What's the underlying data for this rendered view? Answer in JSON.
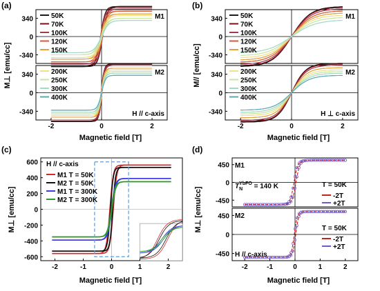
{
  "figure": {
    "colors": {
      "50K": "#1a1a1a",
      "70K": "#7a0f16",
      "100K": "#a23a4e",
      "120K": "#d65a36",
      "150K": "#e6a13c",
      "200K": "#efe08a",
      "250K": "#c7e6a0",
      "300K": "#a6d9c4",
      "400K": "#5aa8b8",
      "M1_50K": "#d42a2a",
      "M2_50K": "#111111",
      "M1_300K": "#3a3ae0",
      "M2_300K": "#2e9a2e",
      "neg2T": "#c81e1e",
      "pos2T": "#6a5acd",
      "zoom_box": "#5b9bd5"
    }
  },
  "chart_data": [
    {
      "panel": "(a)",
      "type": "line",
      "xlabel": "Magnetic field [T]",
      "ylabel": "M⊥ [emu/cc]",
      "xticks": [
        "-2",
        "0",
        "2"
      ],
      "yticks_top": [
        "340",
        "0",
        "-340"
      ],
      "yticks_bottom": [
        "340",
        "0",
        "-340"
      ],
      "xlim": [
        -2.6,
        2.6
      ],
      "ylim": [
        -500,
        500
      ],
      "subpanels": [
        {
          "label": "M1",
          "legend": [
            "50K",
            "70K",
            "100K",
            "120K",
            "150K"
          ],
          "series": [
            {
              "name": "50K",
              "ms": 560,
              "w": 0.18,
              "hc": 0.04
            },
            {
              "name": "70K",
              "ms": 540,
              "w": 0.18,
              "hc": 0.04
            },
            {
              "name": "100K",
              "ms": 510,
              "w": 0.19,
              "hc": 0.04
            },
            {
              "name": "120K",
              "ms": 470,
              "w": 0.2,
              "hc": 0.035
            },
            {
              "name": "150K",
              "ms": 420,
              "w": 0.22,
              "hc": 0.03
            },
            {
              "name": "200K",
              "ms": 390,
              "w": 0.24,
              "hc": 0.02
            },
            {
              "name": "250K",
              "ms": 340,
              "w": 0.26,
              "hc": 0.02
            },
            {
              "name": "300K",
              "ms": 300,
              "w": 0.28,
              "hc": 0.01
            }
          ]
        },
        {
          "label": "M2",
          "legend": [
            "200K",
            "250K",
            "300K",
            "400K"
          ],
          "note": "H // c-axis",
          "series": [
            {
              "name": "50K",
              "ms": 530,
              "w": 0.12,
              "hc": 0.02
            },
            {
              "name": "70K",
              "ms": 520,
              "w": 0.12,
              "hc": 0.02
            },
            {
              "name": "100K",
              "ms": 500,
              "w": 0.12,
              "hc": 0.02
            },
            {
              "name": "150K",
              "ms": 450,
              "w": 0.13,
              "hc": 0.02
            },
            {
              "name": "200K",
              "ms": 420,
              "w": 0.14,
              "hc": 0.01
            },
            {
              "name": "250K",
              "ms": 390,
              "w": 0.14,
              "hc": 0.01
            },
            {
              "name": "300K",
              "ms": 360,
              "w": 0.15,
              "hc": 0.01
            },
            {
              "name": "400K",
              "ms": 320,
              "w": 0.16,
              "hc": 0.0
            }
          ]
        }
      ]
    },
    {
      "panel": "(b)",
      "type": "line",
      "xlabel": "Magnetic field [T]",
      "ylabel": "M// [emu/cc]",
      "xticks": [
        "-2",
        "0",
        "2"
      ],
      "yticks_top": [
        "340",
        "0",
        "-340"
      ],
      "yticks_bottom": [
        "340",
        "0",
        "-340"
      ],
      "xlim": [
        -2.6,
        2.6
      ],
      "ylim": [
        -500,
        500
      ],
      "subpanels": [
        {
          "label": "M1",
          "legend": [
            "50K",
            "70K",
            "100K",
            "120K",
            "150K"
          ],
          "series": [
            {
              "name": "50K",
              "ms": 560,
              "w": 0.75,
              "hc": 0.0
            },
            {
              "name": "70K",
              "ms": 545,
              "w": 0.75,
              "hc": 0.0
            },
            {
              "name": "100K",
              "ms": 520,
              "w": 0.78,
              "hc": 0.0
            },
            {
              "name": "120K",
              "ms": 480,
              "w": 0.8,
              "hc": 0.0
            },
            {
              "name": "150K",
              "ms": 440,
              "w": 0.82,
              "hc": 0.0
            },
            {
              "name": "200K",
              "ms": 400,
              "w": 0.85,
              "hc": 0.0
            },
            {
              "name": "250K",
              "ms": 360,
              "w": 0.9,
              "hc": 0.0
            },
            {
              "name": "300K",
              "ms": 310,
              "w": 0.95,
              "hc": 0.0
            }
          ]
        },
        {
          "label": "M2",
          "legend": [
            "200K",
            "250K",
            "300K",
            "400K"
          ],
          "note": "H ⊥ c-axis",
          "series": [
            {
              "name": "50K",
              "ms": 540,
              "w": 0.55,
              "hc": 0.0
            },
            {
              "name": "70K",
              "ms": 525,
              "w": 0.55,
              "hc": 0.0
            },
            {
              "name": "100K",
              "ms": 505,
              "w": 0.58,
              "hc": 0.0
            },
            {
              "name": "150K",
              "ms": 460,
              "w": 0.6,
              "hc": 0.0
            },
            {
              "name": "200K",
              "ms": 420,
              "w": 0.62,
              "hc": 0.0
            },
            {
              "name": "250K",
              "ms": 390,
              "w": 0.65,
              "hc": 0.0
            },
            {
              "name": "300K",
              "ms": 360,
              "w": 0.68,
              "hc": 0.0
            },
            {
              "name": "400K",
              "ms": 320,
              "w": 0.7,
              "hc": 0.0
            }
          ]
        }
      ]
    },
    {
      "panel": "(c)",
      "type": "line",
      "xlabel": "Magnetic field [T]",
      "ylabel": "M⊥ [emu/cc]",
      "legend_title": "H // c-axis",
      "xticks": [
        "-2",
        "-1",
        "0",
        "1",
        "2"
      ],
      "yticks": [
        "600",
        "400",
        "200",
        "0",
        "-200",
        "-400",
        "-600"
      ],
      "xlim": [
        -2.5,
        2.5
      ],
      "ylim": [
        -650,
        650
      ],
      "series": [
        {
          "name": "M1 T = 50K",
          "key": "M1_50K",
          "ms": 560,
          "w": 0.12,
          "hc": 0.06
        },
        {
          "name": "M2 T = 50K",
          "key": "M2_50K",
          "ms": 530,
          "w": 0.1,
          "hc": 0.04
        },
        {
          "name": "M1 T = 300K",
          "key": "M1_300K",
          "ms": 390,
          "w": 0.14,
          "hc": 0.01
        },
        {
          "name": "M2 T = 300K",
          "key": "M2_300K",
          "ms": 350,
          "w": 0.14,
          "hc": 0.01
        }
      ],
      "zoom_box": {
        "x": [
          -0.6,
          0.6
        ],
        "y": [
          -600,
          600
        ]
      }
    },
    {
      "panel": "(d)",
      "type": "line",
      "xlabel": "Magnetic field [T]",
      "ylabel": "M⊥ [emu/cc]",
      "xticks": [
        "-2",
        "-1",
        "0",
        "1",
        "2"
      ],
      "yticks_top": [
        "450",
        "0",
        "-450"
      ],
      "yticks_bottom": [
        "450",
        "0",
        "-450"
      ],
      "xlim": [
        -2.5,
        2.5
      ],
      "ylim": [
        -620,
        620
      ],
      "subpanels": [
        {
          "label": "M1",
          "temp": "T = 50K",
          "annot": "T_N^YbFO = 140 K",
          "series": [
            {
              "name": "-2T",
              "ms": 560,
              "w": 0.15,
              "hc": 0.04
            },
            {
              "name": "+2T",
              "ms": 560,
              "w": 0.15,
              "hc": -0.04
            }
          ]
        },
        {
          "label": "M2",
          "temp": "T = 50K",
          "note": "H // c-axis",
          "series": [
            {
              "name": "-2T",
              "ms": 540,
              "w": 0.12,
              "hc": 0.03
            },
            {
              "name": "+2T",
              "ms": 540,
              "w": 0.12,
              "hc": -0.03
            }
          ]
        }
      ],
      "legend": [
        "-2T",
        "+2T"
      ]
    }
  ]
}
